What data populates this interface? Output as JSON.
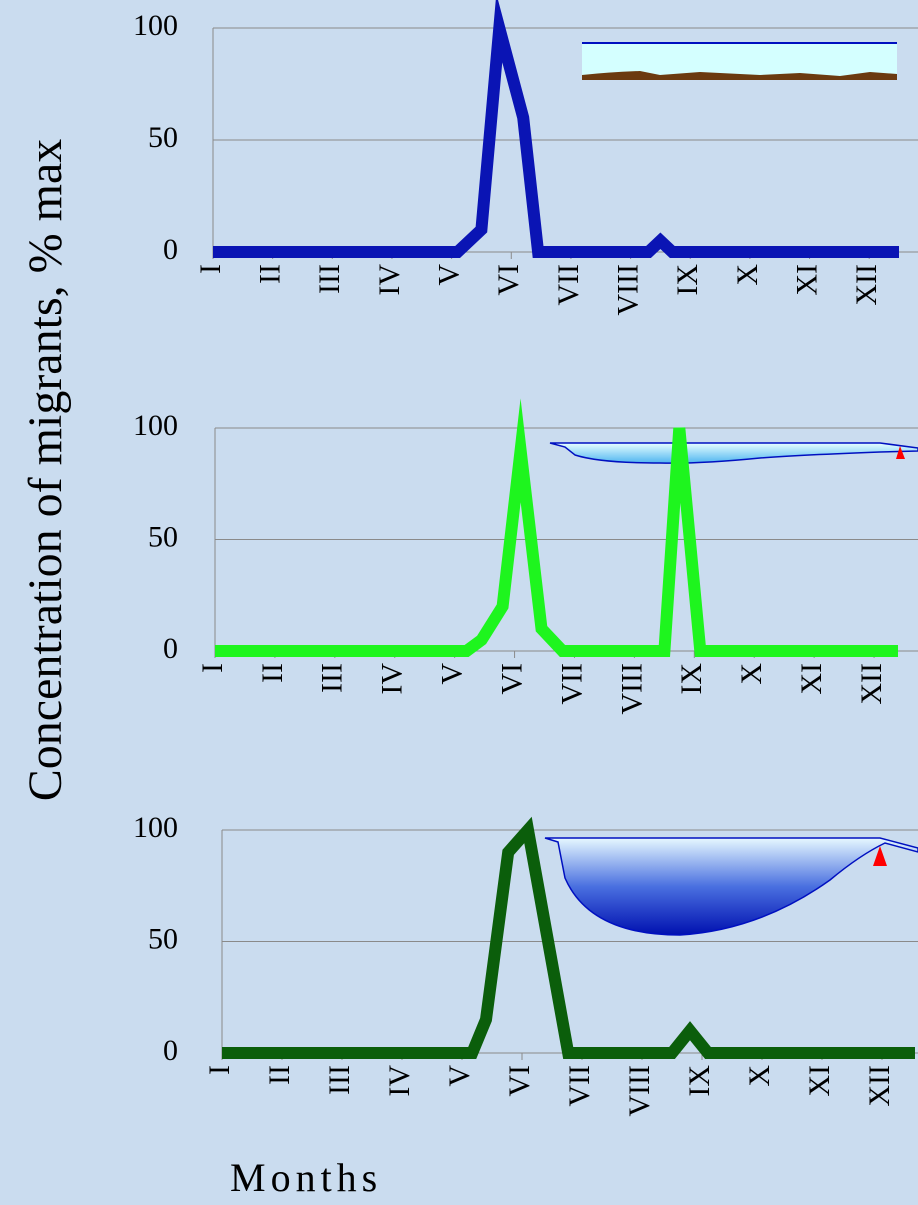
{
  "ylabel": "Concentration of migrants, %  max",
  "xlabel": "Months",
  "chart_data": [
    {
      "type": "line",
      "color": "#0a14b4",
      "x": [
        1,
        5.1,
        5.5,
        5.8,
        6.2,
        6.45,
        8.3,
        8.5,
        8.7,
        12.5
      ],
      "values": [
        0,
        0,
        10,
        100,
        60,
        0,
        0,
        5,
        0,
        0
      ],
      "xlim": [
        1,
        12.6
      ],
      "ylim": [
        0,
        100
      ],
      "yticks": [
        0,
        50,
        100
      ],
      "xticks": [
        {
          "value": 1,
          "label": "I"
        },
        {
          "value": 2,
          "label": "II"
        },
        {
          "value": 3,
          "label": "III"
        },
        {
          "value": 4,
          "label": "IV"
        },
        {
          "value": 5,
          "label": "V"
        },
        {
          "value": 6,
          "label": "VI"
        },
        {
          "value": 7,
          "label": "VII"
        },
        {
          "value": 8,
          "label": "VIII"
        },
        {
          "value": 9,
          "label": "IX"
        },
        {
          "value": 10,
          "label": "X"
        },
        {
          "value": 11,
          "label": "XI"
        },
        {
          "value": 12,
          "label": "XII"
        }
      ],
      "grid": true
    },
    {
      "type": "line",
      "color": "#1ef51e",
      "x": [
        1,
        5.2,
        5.45,
        5.8,
        6.1,
        6.45,
        6.8,
        8.5,
        8.75,
        9.1,
        12.4
      ],
      "values": [
        0,
        0,
        5,
        20,
        90,
        10,
        0,
        0,
        100,
        0,
        0
      ],
      "xlim": [
        1,
        12.6
      ],
      "ylim": [
        0,
        100
      ],
      "yticks": [
        0,
        50,
        100
      ],
      "xticks": [
        {
          "value": 1,
          "label": "I"
        },
        {
          "value": 2,
          "label": "II"
        },
        {
          "value": 3,
          "label": "III"
        },
        {
          "value": 4,
          "label": "IV"
        },
        {
          "value": 5,
          "label": "V"
        },
        {
          "value": 6,
          "label": "VI"
        },
        {
          "value": 7,
          "label": "VII"
        },
        {
          "value": 8,
          "label": "VIII"
        },
        {
          "value": 9,
          "label": "IX"
        },
        {
          "value": 10,
          "label": "X"
        },
        {
          "value": 11,
          "label": "XI"
        },
        {
          "value": 12,
          "label": "XII"
        }
      ],
      "grid": true
    },
    {
      "type": "line",
      "color": "#0b5e0b",
      "x": [
        1,
        5.17,
        5.4,
        5.77,
        6.1,
        6.77,
        8.5,
        8.8,
        9.1,
        12.55
      ],
      "values": [
        0,
        0,
        15,
        90,
        100,
        0,
        0,
        10,
        0,
        0
      ],
      "xlim": [
        1,
        12.6
      ],
      "ylim": [
        0,
        100
      ],
      "yticks": [
        0,
        50,
        100
      ],
      "xticks": [
        {
          "value": 1,
          "label": "I"
        },
        {
          "value": 2,
          "label": "II"
        },
        {
          "value": 3,
          "label": "III"
        },
        {
          "value": 4,
          "label": "IV"
        },
        {
          "value": 5,
          "label": "V"
        },
        {
          "value": 6,
          "label": "VI"
        },
        {
          "value": 7,
          "label": "VII"
        },
        {
          "value": 8,
          "label": "VIII"
        },
        {
          "value": 9,
          "label": "IX"
        },
        {
          "value": 10,
          "label": "X"
        },
        {
          "value": 11,
          "label": "XI"
        },
        {
          "value": 12,
          "label": "XII"
        }
      ],
      "grid": true
    }
  ]
}
